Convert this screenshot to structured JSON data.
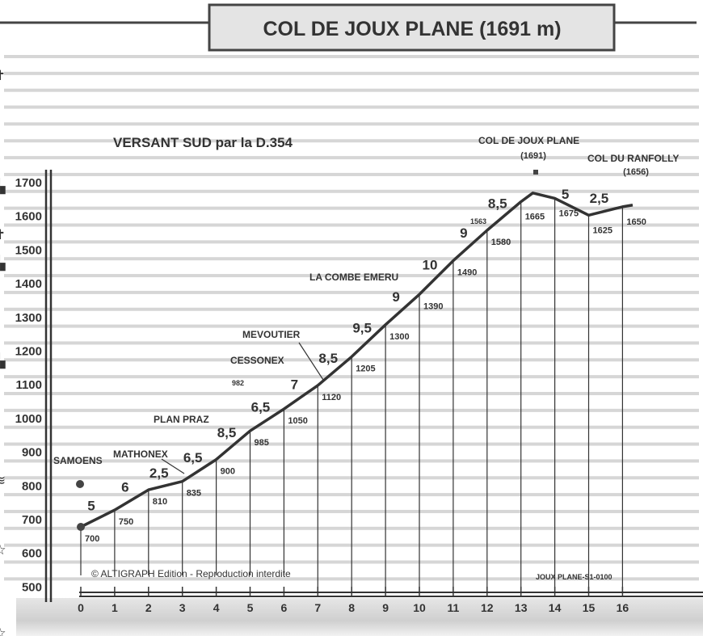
{
  "header": {
    "title": "COL DE JOUX PLANE (1691 m)"
  },
  "chart_data": {
    "type": "line",
    "title": "VERSANT SUD par la D.354",
    "xlabel": "",
    "ylabel": "",
    "xlim": [
      0,
      16.5
    ],
    "ylim": [
      500,
      1700
    ],
    "x_ticks": [
      "0",
      "1",
      "2",
      "3",
      "4",
      "5",
      "6",
      "7",
      "8",
      "9",
      "10",
      "11",
      "12",
      "13",
      "14",
      "15",
      "16"
    ],
    "y_ticks": [
      "1700",
      "1600",
      "1500",
      "1400",
      "1300",
      "1200",
      "1100",
      "1000",
      "900",
      "800",
      "700",
      "600",
      "500"
    ],
    "grid": true,
    "profile": [
      {
        "km": 0,
        "alt": 700
      },
      {
        "km": 1,
        "alt": 750
      },
      {
        "km": 2,
        "alt": 810
      },
      {
        "km": 3,
        "alt": 835
      },
      {
        "km": 4,
        "alt": 900
      },
      {
        "km": 5,
        "alt": 985
      },
      {
        "km": 6,
        "alt": 1050
      },
      {
        "km": 7,
        "alt": 1120
      },
      {
        "km": 8,
        "alt": 1205
      },
      {
        "km": 9,
        "alt": 1300
      },
      {
        "km": 10,
        "alt": 1390
      },
      {
        "km": 11,
        "alt": 1490
      },
      {
        "km": 12,
        "alt": 1580
      },
      {
        "km": 13,
        "alt": 1665
      },
      {
        "km": 13.35,
        "alt": 1691
      },
      {
        "km": 14,
        "alt": 1675
      },
      {
        "km": 15,
        "alt": 1625
      },
      {
        "km": 16,
        "alt": 1650
      }
    ],
    "altitude_labels": [
      {
        "km": 0,
        "text": "700"
      },
      {
        "km": 1,
        "text": "750"
      },
      {
        "km": 2,
        "text": "810"
      },
      {
        "km": 3,
        "text": "835"
      },
      {
        "km": 4,
        "text": "900"
      },
      {
        "km": 5,
        "text": "985"
      },
      {
        "km": 6,
        "text": "1050"
      },
      {
        "km": 7,
        "text": "1120"
      },
      {
        "km": 8,
        "text": "1205"
      },
      {
        "km": 9,
        "text": "1300"
      },
      {
        "km": 10,
        "text": "1390"
      },
      {
        "km": 11,
        "text": "1490"
      },
      {
        "km": 12,
        "text": "1580"
      },
      {
        "km": 13,
        "text": "1665"
      },
      {
        "km": 14,
        "text": "1675"
      },
      {
        "km": 15,
        "text": "1625"
      },
      {
        "km": 16,
        "text": "1650"
      }
    ],
    "gradients_percent": [
      "5",
      "6",
      "2,5",
      "6,5",
      "8,5",
      "6,5",
      "7",
      "8,5",
      "9,5",
      "9",
      "10",
      "9",
      "8,5",
      "5",
      "2,5"
    ],
    "places": [
      {
        "name": "SAMOENS",
        "alt": "",
        "km": 0,
        "icon": "church-icon"
      },
      {
        "name": "MATHONEX",
        "alt": "",
        "km": 3.1,
        "icon": ""
      },
      {
        "name": "PLAN PRAZ",
        "alt": "",
        "km": 3.2,
        "icon": "house-icon"
      },
      {
        "name": "CESSONEX",
        "alt": "",
        "km": 5.4,
        "icon": "house-icon"
      },
      {
        "name": "",
        "alt": "982",
        "km": 4.7,
        "icon": "cross-icon"
      },
      {
        "name": "MEVOUTIER",
        "alt": "",
        "km": 7,
        "icon": ""
      },
      {
        "name": "LA COMBE EMERU",
        "alt": "",
        "km": 8.4,
        "icon": "house-icon"
      },
      {
        "name": "",
        "alt": "1563",
        "km": 11.9,
        "icon": "bridge-icon"
      },
      {
        "name": "COL DE JOUX PLANE",
        "alt": "(1691)",
        "km": 13.35,
        "icon": "star-icon"
      },
      {
        "name": "COL DU RANFOLLY",
        "alt": "(1656)",
        "km": 16.3,
        "icon": "star-icon"
      }
    ],
    "colors": {
      "line": "#333333",
      "grid": "#c8c8c8",
      "text": "#333333"
    }
  },
  "footer": {
    "copyright": "© ALTIGRAPH Edition - Reproduction interdite",
    "code": "JOUX PLANE-S1-0100"
  }
}
